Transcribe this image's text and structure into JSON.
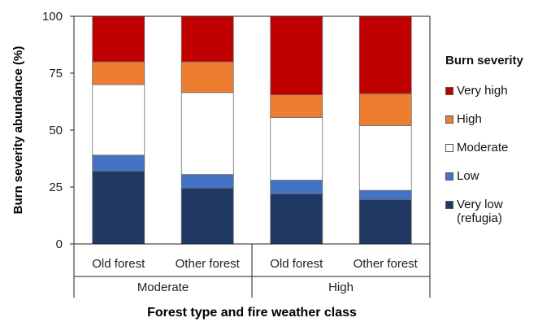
{
  "chart_data": {
    "type": "bar",
    "stacked": true,
    "categories": [
      "Old forest",
      "Other forest",
      "Old forest",
      "Other forest"
    ],
    "groups": [
      {
        "label": "Moderate",
        "categories": [
          "Old forest",
          "Other forest"
        ]
      },
      {
        "label": "High",
        "categories": [
          "Old forest",
          "Other forest"
        ]
      }
    ],
    "series": [
      {
        "name": "Very low\n(refugia)",
        "color": "#203864",
        "values": [
          32,
          24.5,
          22,
          19.5
        ]
      },
      {
        "name": "Low",
        "color": "#4472c4",
        "values": [
          7,
          6,
          6,
          4
        ]
      },
      {
        "name": "Moderate",
        "color": "#ffffff",
        "values": [
          31,
          36,
          27.5,
          28.5
        ]
      },
      {
        "name": "High",
        "color": "#ed7d31",
        "values": [
          10,
          13.5,
          10,
          14
        ]
      },
      {
        "name": "Very high",
        "color": "#c00000",
        "values": [
          20,
          20,
          34.5,
          34
        ]
      }
    ],
    "xlabel": "Forest type and fire weather class",
    "ylabel": "Burn severity abundance (%)",
    "ylim": [
      0,
      100
    ],
    "yticks": [
      0,
      25,
      50,
      75,
      100
    ],
    "legend_title": "Burn severity",
    "legend_position": "right",
    "grid": false
  }
}
